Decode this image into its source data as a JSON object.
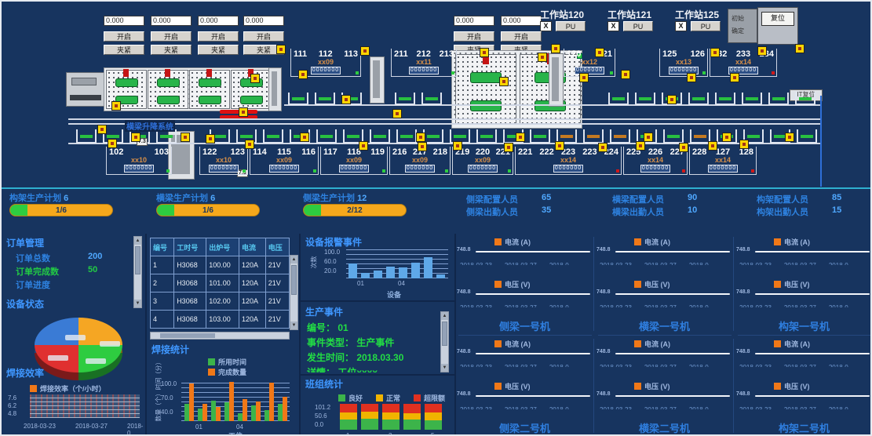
{
  "top": {
    "inputs": [
      "0.000",
      "0.000",
      "0.000",
      "0.000",
      "0.000",
      "0.000"
    ],
    "open_label": "开启",
    "clamp_label": "夹紧",
    "workstations": [
      {
        "name": "工作站120"
      },
      {
        "name": "工作站121"
      },
      {
        "name": "工作站125"
      }
    ],
    "x_label": "X",
    "pu_label": "PU",
    "corner_line1": "初始",
    "corner_line2": "确定",
    "reset_label": "复位",
    "it_reset_label": "IT复位",
    "line_label": "横梁升降系统",
    "chip_label": "7.3",
    "counter": "0000000",
    "top_groups": [
      {
        "numbers": [
          "111",
          "112",
          "113"
        ],
        "code": "xx09"
      },
      {
        "numbers": [
          "211",
          "212",
          "213"
        ],
        "code": "xx11"
      },
      {
        "numbers": [
          "120",
          "121"
        ],
        "code": "xx12"
      },
      {
        "numbers": [
          "125",
          "126"
        ],
        "code": "xx13"
      },
      {
        "numbers": [
          "232",
          "233",
          "234"
        ],
        "code": "xx14"
      }
    ],
    "bottom_groups": [
      {
        "numbers": [
          "102",
          "103"
        ],
        "code": "xx10"
      },
      {
        "numbers": [
          "122",
          "123"
        ],
        "code": "xx10"
      },
      {
        "numbers": [
          "114",
          "115",
          "116"
        ],
        "code": "xx09"
      },
      {
        "numbers": [
          "117",
          "118",
          "119"
        ],
        "code": "xx09"
      },
      {
        "numbers": [
          "216",
          "217",
          "218"
        ],
        "code": "xx09"
      },
      {
        "numbers": [
          "219",
          "220",
          "221"
        ],
        "code": "xx09"
      },
      {
        "numbers": [
          "221",
          "222",
          "223",
          "223",
          "224"
        ],
        "code": "xx14"
      },
      {
        "numbers": [
          "225",
          "226",
          "227"
        ],
        "code": "xx14"
      },
      {
        "numbers": [
          "228",
          "127",
          "128"
        ],
        "code": "xx14"
      }
    ]
  },
  "kpis": {
    "plans": [
      {
        "label": "构架生产计划",
        "value": "6",
        "progress": "1/6",
        "pct": 17
      },
      {
        "label": "横梁生产计划",
        "value": "6",
        "progress": "1/6",
        "pct": 17
      },
      {
        "label": "侧梁生产计划",
        "value": "12",
        "progress": "2/12",
        "pct": 17
      }
    ],
    "staff": [
      [
        {
          "label": "侧梁配置人员",
          "value": "65"
        },
        {
          "label": "侧梁出勤人员",
          "value": "35"
        }
      ],
      [
        {
          "label": "横梁配置人员",
          "value": "90"
        },
        {
          "label": "横梁出勤人员",
          "value": "10"
        }
      ],
      [
        {
          "label": "构架配置人员",
          "value": "85"
        },
        {
          "label": "构架出勤人员",
          "value": "15"
        }
      ]
    ]
  },
  "orders": {
    "title": "订单管理",
    "rows": [
      {
        "label": "订单总数",
        "value": "200",
        "cls": "blue"
      },
      {
        "label": "订单完成数",
        "value": "50",
        "cls": "green"
      },
      {
        "label": "订单进度",
        "value": "",
        "cls": "blue"
      }
    ]
  },
  "device_status": {
    "title": "设备状态",
    "slice_colors": [
      "#f5a623",
      "#2ecc40",
      "#e03030",
      "#3a7bd5"
    ]
  },
  "weld_eff": {
    "title": "焊接效率",
    "legend": "焊接效率（个/小时）",
    "legend_color": "#f07818",
    "yticks": [
      "7.6",
      "6.2",
      "4.8"
    ],
    "xticks": [
      "2018-03-23",
      "2018-03-27",
      "2018-0"
    ]
  },
  "weld_table": {
    "headers": [
      "编号",
      "工时号",
      "出炉号",
      "电流",
      "电压"
    ],
    "rows": [
      [
        "1",
        "H3068",
        "100.00",
        "120A",
        "21V"
      ],
      [
        "2",
        "H3068",
        "101.00",
        "120A",
        "21V"
      ],
      [
        "3",
        "H3068",
        "102.00",
        "120A",
        "21V"
      ],
      [
        "4",
        "H3068",
        "103.00",
        "120A",
        "21V"
      ]
    ]
  },
  "weld_stats": {
    "type": "bar",
    "title": "焊接统计",
    "legend": [
      {
        "label": "所用时间",
        "color": "#3cb44a"
      },
      {
        "label": "完成数量",
        "color": "#f07818"
      }
    ],
    "ylabel": "数量（个）时间（分）",
    "yticks": [
      "100.0",
      "70.0",
      "40.0"
    ],
    "xlabel": "工位",
    "xticks": [
      "01",
      "04"
    ],
    "ylim": [
      40,
      100
    ],
    "pairs": [
      [
        62,
        95
      ],
      [
        55,
        62
      ],
      [
        68,
        58
      ],
      [
        65,
        98
      ],
      [
        48,
        70
      ],
      [
        60,
        66
      ],
      [
        52,
        96
      ],
      [
        63,
        74
      ]
    ]
  },
  "alarm_events": {
    "type": "bar",
    "title": "设备报警事件",
    "ylabel": "次数",
    "yticks": [
      "100.0",
      "60.0",
      "20.0"
    ],
    "xlabel": "设备",
    "xticks": [
      "01",
      "04"
    ],
    "ylim": [
      0,
      110
    ],
    "values": [
      55,
      22,
      30,
      45,
      42,
      58,
      80,
      14
    ],
    "bar_color": "#5fa8e8"
  },
  "prod_event": {
    "title": "生产事件",
    "rows": [
      {
        "label": "编号：",
        "value": "01"
      },
      {
        "label": "事件类型：",
        "value": "生产事件"
      },
      {
        "label": "发生时间：",
        "value": "2018.03.30"
      },
      {
        "label": "详情：",
        "value": "工位xxxx"
      }
    ]
  },
  "team_stats": {
    "type": "stacked-bar",
    "title": "班组统计",
    "legend": [
      {
        "label": "良好",
        "color": "#3cb44a"
      },
      {
        "label": "正常",
        "color": "#f0b400"
      },
      {
        "label": "超限额",
        "color": "#e03020"
      }
    ],
    "yticks": [
      "101.2",
      "50.6",
      "0.0"
    ],
    "xticks": [
      "1",
      "3",
      "5"
    ],
    "stacks": [
      [
        40,
        28,
        33
      ],
      [
        42,
        26,
        30
      ],
      [
        38,
        30,
        32
      ],
      [
        40,
        24,
        36
      ],
      [
        36,
        30,
        34
      ]
    ]
  },
  "machines": {
    "current_legend": "电流 (A)",
    "voltage_legend": "电压 (V)",
    "legend_color": "#f07818",
    "ytick": "748.8",
    "xticks": [
      "2018-03-23",
      "2018-03-27",
      "2018-0"
    ],
    "names": [
      "侧梁一号机",
      "横梁一号机",
      "构架一号机",
      "侧梁二号机",
      "横梁二号机",
      "构架二号机"
    ]
  }
}
